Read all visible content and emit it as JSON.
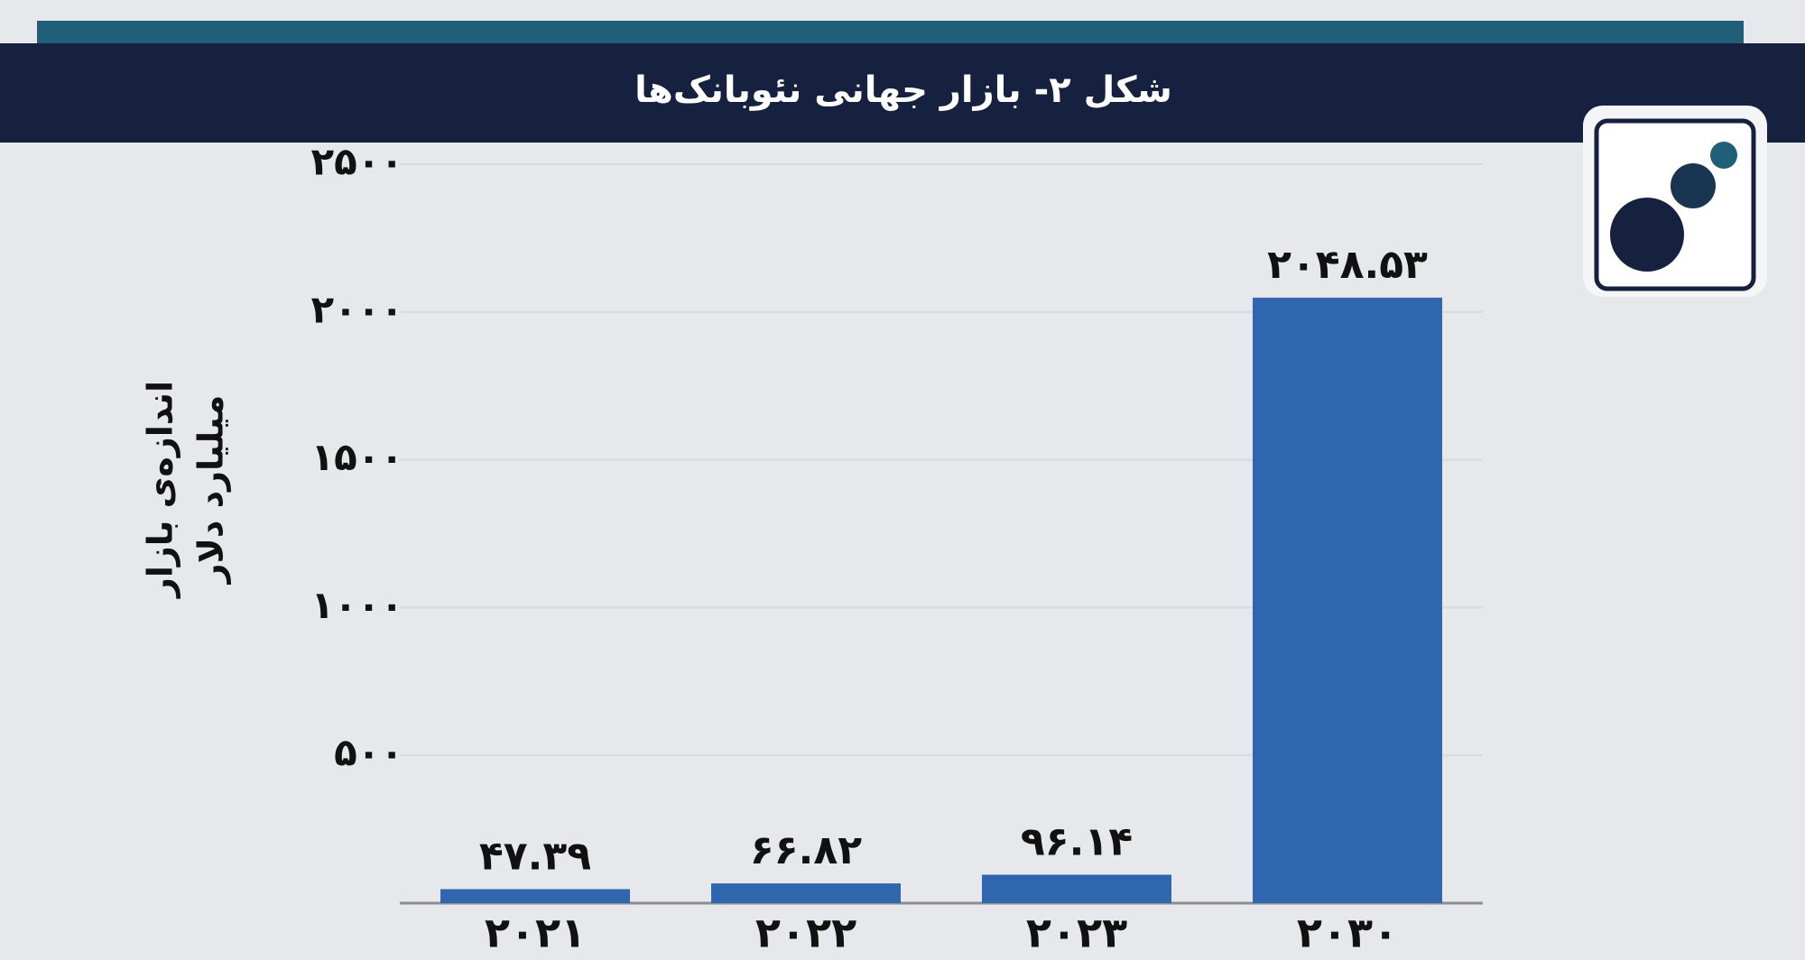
{
  "chart_data": {
    "type": "bar",
    "title": "شکل ۲- بازار جهانی نئوبانک‌ها",
    "ylabel": [
      "اندازه‌ی بازار",
      "میلیارد دلار"
    ],
    "categories": [
      "۲۰۲۱",
      "۲۰۲۲",
      "۲۰۲۳",
      "۲۰۳۰"
    ],
    "values": [
      47.39,
      66.82,
      96.14,
      2048.53
    ],
    "value_labels": [
      "۴۷.۳۹",
      "۶۶.۸۲",
      "۹۶.۱۴",
      "۲۰۴۸.۵۳"
    ],
    "color": "#2f66ad",
    "ylim": [
      0,
      2500
    ],
    "yticks": [
      {
        "value": 500,
        "label": "۵۰۰"
      },
      {
        "value": 1000,
        "label": "۱۰۰۰"
      },
      {
        "value": 1500,
        "label": "۱۵۰۰"
      },
      {
        "value": 2000,
        "label": "۲۰۰۰"
      },
      {
        "value": 2500,
        "label": "۲۵۰۰"
      }
    ],
    "grid": true
  }
}
